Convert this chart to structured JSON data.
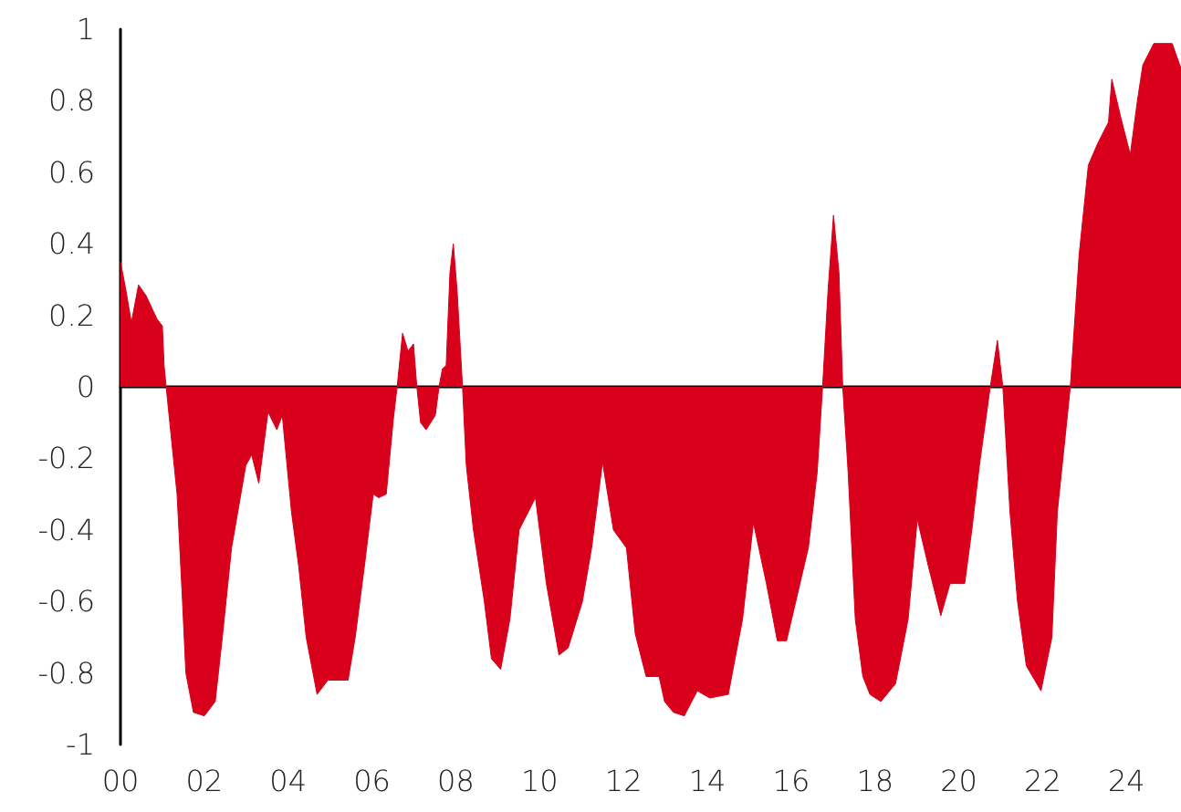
{
  "chart_data": {
    "type": "area",
    "color": "#d9001b",
    "x": [
      0,
      0.13,
      0.26,
      0.43,
      0.61,
      0.87,
      1.0,
      1.04,
      1.09,
      1.35,
      1.48,
      1.56,
      1.74,
      2.0,
      2.26,
      2.43,
      2.65,
      2.99,
      3.13,
      3.3,
      3.52,
      3.73,
      3.86,
      4.08,
      4.25,
      4.43,
      4.69,
      4.95,
      5.43,
      5.6,
      5.82,
      6.03,
      6.16,
      6.34,
      6.51,
      6.6,
      6.73,
      6.86,
      6.99,
      7.07,
      7.16,
      7.29,
      7.51,
      7.6,
      7.68,
      7.77,
      7.86,
      7.94,
      8.03,
      8.16,
      8.25,
      8.42,
      8.68,
      8.85,
      9.07,
      9.29,
      9.51,
      9.9,
      10.16,
      10.46,
      10.68,
      11.02,
      11.24,
      11.5,
      11.76,
      12.07,
      12.28,
      12.54,
      12.85,
      12.98,
      13.19,
      13.45,
      13.76,
      14.06,
      14.5,
      14.84,
      15.1,
      15.41,
      15.67,
      15.89,
      16.15,
      16.41,
      16.62,
      16.75,
      16.88,
      17.01,
      17.14,
      17.23,
      17.36,
      17.53,
      17.71,
      17.88,
      18.14,
      18.49,
      18.79,
      19.01,
      19.27,
      19.57,
      19.79,
      20.14,
      20.31,
      20.49,
      20.75,
      20.92,
      21.05,
      21.22,
      21.4,
      21.61,
      21.96,
      22.22,
      22.35,
      22.66,
      22.87,
      23.09,
      23.31,
      23.57,
      23.65,
      23.87,
      24.09,
      24.26,
      24.39,
      24.65,
      25.09,
      25.3
    ],
    "values": [
      0.35,
      0.27,
      0.18,
      0.285,
      0.255,
      0.19,
      0.17,
      0.06,
      0,
      -0.3,
      -0.6,
      -0.8,
      -0.91,
      -0.92,
      -0.88,
      -0.7,
      -0.45,
      -0.22,
      -0.19,
      -0.27,
      -0.07,
      -0.12,
      -0.08,
      -0.35,
      -0.5,
      -0.7,
      -0.86,
      -0.82,
      -0.82,
      -0.7,
      -0.5,
      -0.3,
      -0.31,
      -0.3,
      -0.09,
      0,
      0.15,
      0.1,
      0.12,
      0,
      -0.1,
      -0.12,
      -0.08,
      0,
      0.05,
      0.06,
      0.32,
      0.4,
      0.27,
      0,
      -0.22,
      -0.4,
      -0.6,
      -0.76,
      -0.79,
      -0.65,
      -0.4,
      -0.31,
      -0.55,
      -0.75,
      -0.73,
      -0.6,
      -0.45,
      -0.21,
      -0.4,
      -0.45,
      -0.69,
      -0.81,
      -0.81,
      -0.88,
      -0.91,
      -0.92,
      -0.85,
      -0.87,
      -0.86,
      -0.65,
      -0.38,
      -0.55,
      -0.71,
      -0.71,
      -0.58,
      -0.45,
      -0.24,
      0,
      0.27,
      0.48,
      0.32,
      0,
      -0.24,
      -0.65,
      -0.81,
      -0.86,
      -0.88,
      -0.83,
      -0.65,
      -0.37,
      -0.5,
      -0.64,
      -0.55,
      -0.55,
      -0.4,
      -0.22,
      0,
      0.13,
      0,
      -0.35,
      -0.6,
      -0.78,
      -0.85,
      -0.7,
      -0.35,
      0,
      0.37,
      0.62,
      0.68,
      0.74,
      0.86,
      0.75,
      0.65,
      0.8,
      0.9,
      0.96,
      0.96,
      0.89
    ],
    "xlim": [
      0,
      25.3
    ],
    "xticks": [
      {
        "value": 0,
        "label": "00"
      },
      {
        "value": 2,
        "label": "02"
      },
      {
        "value": 4,
        "label": "04"
      },
      {
        "value": 6,
        "label": "06"
      },
      {
        "value": 8,
        "label": "08"
      },
      {
        "value": 10,
        "label": "10"
      },
      {
        "value": 12,
        "label": "12"
      },
      {
        "value": 14,
        "label": "14"
      },
      {
        "value": 16,
        "label": "16"
      },
      {
        "value": 18,
        "label": "18"
      },
      {
        "value": 20,
        "label": "20"
      },
      {
        "value": 22,
        "label": "22"
      },
      {
        "value": 24,
        "label": "24"
      }
    ],
    "ylim": [
      -1,
      1
    ],
    "yticks": [
      -1,
      -0.8,
      -0.6,
      -0.4,
      -0.2,
      0,
      0.2,
      0.4,
      0.6,
      0.8,
      1
    ]
  }
}
